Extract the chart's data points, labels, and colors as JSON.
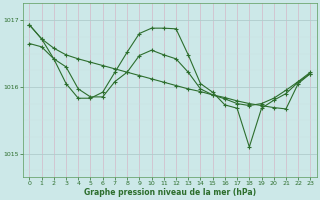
{
  "title": "Graphe pression niveau de la mer (hPa)",
  "bg_color": "#cce8e8",
  "line_color": "#2d6e2d",
  "marker": "+",
  "marker_size": 3,
  "linewidth": 0.8,
  "ylim": [
    1014.65,
    1017.25
  ],
  "yticks": [
    1015,
    1016,
    1017
  ],
  "xlim": [
    -0.5,
    23.5
  ],
  "xticks": [
    0,
    1,
    2,
    3,
    4,
    5,
    6,
    7,
    8,
    9,
    10,
    11,
    12,
    13,
    14,
    15,
    16,
    17,
    18,
    19,
    20,
    21,
    22,
    23
  ],
  "tick_fontsize": 4.5,
  "label_fontsize": 5.5,
  "s1": [
    1016.93,
    1016.72,
    1016.58,
    1016.48,
    1016.42,
    1016.37,
    1016.32,
    1016.27,
    1016.22,
    1016.17,
    1016.12,
    1016.07,
    1016.02,
    1015.97,
    1015.93,
    1015.88,
    1015.84,
    1015.79,
    1015.75,
    1015.72,
    1015.69,
    1015.67,
    1016.05,
    1016.2
  ],
  "s2": [
    1016.93,
    1016.72,
    1016.42,
    1016.05,
    1015.83,
    1015.83,
    1015.92,
    1016.22,
    1016.52,
    1016.8,
    1016.88,
    1016.88,
    1016.87,
    1016.48,
    1016.05,
    1015.92,
    1015.73,
    1015.68,
    1015.1,
    1015.68,
    1015.8,
    1015.9,
    1016.07,
    1016.2
  ],
  "s3": [
    1016.65,
    1016.6,
    1016.42,
    1016.3,
    1015.97,
    1015.85,
    1015.85,
    1016.08,
    1016.22,
    1016.47,
    1016.55,
    1016.48,
    1016.42,
    1016.22,
    1015.97,
    1015.88,
    1015.82,
    1015.75,
    1015.72,
    1015.75,
    1015.83,
    1015.95,
    1016.08,
    1016.22
  ]
}
